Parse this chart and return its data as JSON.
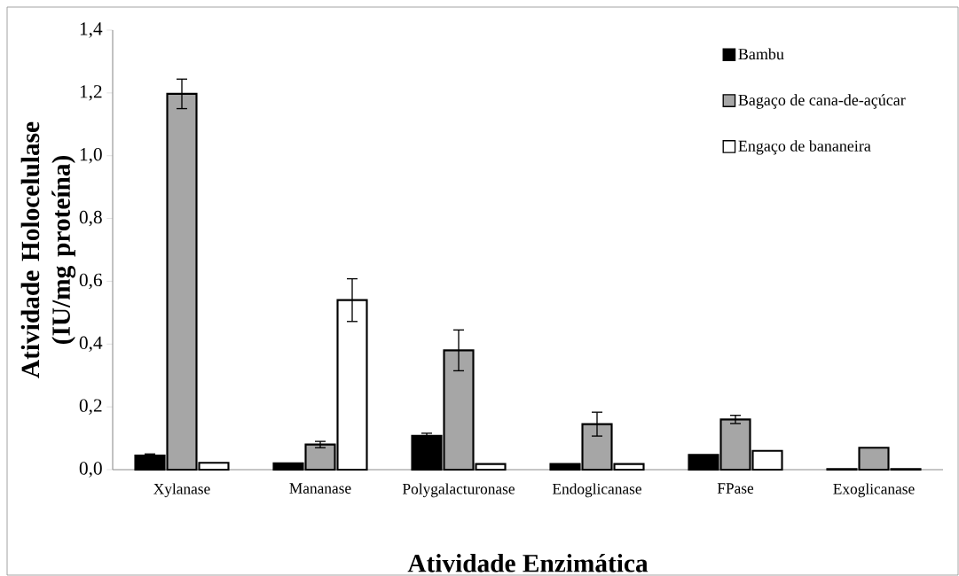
{
  "chart_data": {
    "type": "bar",
    "xlabel": "Atividade Enzimática",
    "ylabel": "Atividade Holocelulase (IU/mg proteína)",
    "categories": [
      "Xylanase",
      "Mananase",
      "Polygalacturonase",
      "Endoglicanase",
      "FPase",
      "Exoglicanase"
    ],
    "series": [
      {
        "name": "Bambu",
        "color": "#000000",
        "values": [
          0.045,
          0.02,
          0.108,
          0.018,
          0.047,
          0.002
        ],
        "errors": [
          0.005,
          null,
          0.008,
          null,
          null,
          null
        ]
      },
      {
        "name": "Bagaço de cana-de-açúcar",
        "color": "#a6a6a6",
        "values": [
          1.197,
          0.08,
          0.38,
          0.145,
          0.16,
          0.07
        ],
        "errors": [
          0.047,
          0.01,
          0.065,
          0.038,
          0.013,
          null
        ]
      },
      {
        "name": "Engaço de bananeira",
        "color": "#ffffff",
        "values": [
          0.022,
          0.54,
          0.018,
          0.018,
          0.06,
          0.002
        ],
        "errors": [
          null,
          0.068,
          null,
          null,
          null,
          null
        ]
      }
    ],
    "ylim": [
      0,
      1.4
    ],
    "yticks": [
      {
        "value": 0,
        "label": "0,0"
      },
      {
        "value": 0.2,
        "label": "0,2"
      },
      {
        "value": 0.4,
        "label": "0,4"
      },
      {
        "value": 0.6,
        "label": "0,6"
      },
      {
        "value": 0.8,
        "label": "0,8"
      },
      {
        "value": 1.0,
        "label": "1,0"
      },
      {
        "value": 1.2,
        "label": "1,2"
      },
      {
        "value": 1.4,
        "label": "1,4"
      }
    ],
    "grid": false,
    "legend": "top right"
  }
}
